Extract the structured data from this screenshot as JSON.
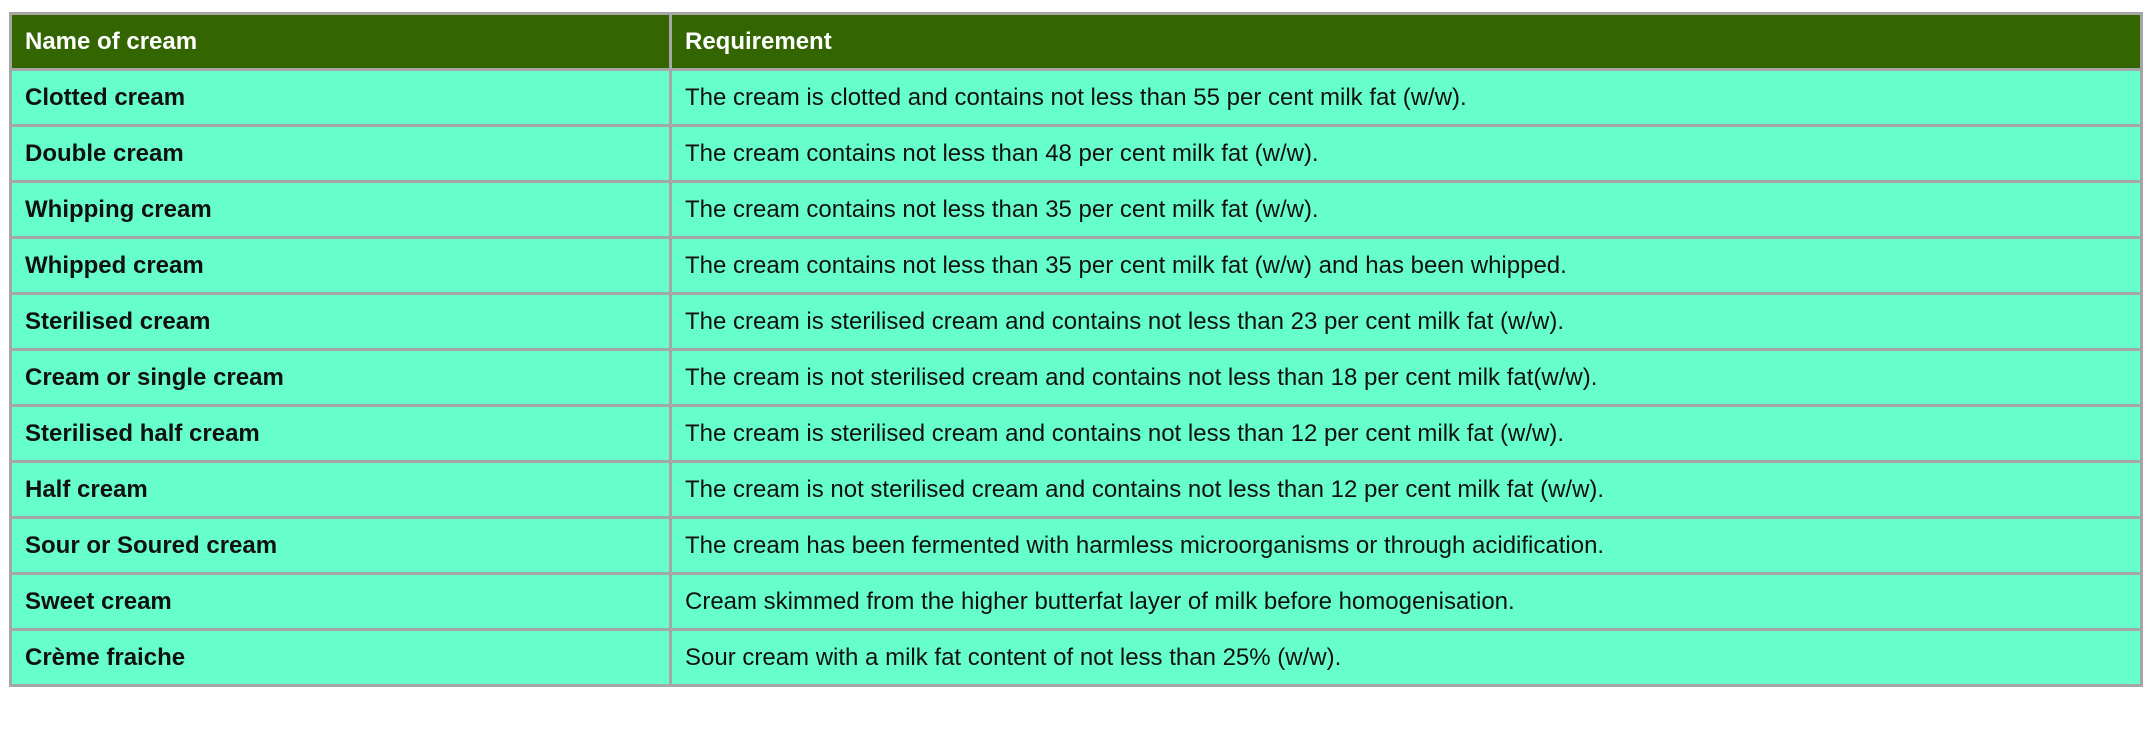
{
  "table": {
    "header": [
      "Name of cream",
      "Requirement"
    ],
    "rows": [
      [
        "Clotted cream",
        "The cream is clotted and contains not less than 55 per cent milk fat (w/w)."
      ],
      [
        "Double cream",
        "The cream contains not less than 48 per cent milk fat (w/w)."
      ],
      [
        "Whipping cream",
        "The cream contains not less than 35 per cent milk fat (w/w)."
      ],
      [
        "Whipped cream",
        "The cream contains not less than 35 per cent milk fat (w/w) and has been whipped."
      ],
      [
        "Sterilised cream",
        "The cream is sterilised cream and contains not less than 23 per cent milk fat (w/w)."
      ],
      [
        "Cream or single cream",
        "The cream is not sterilised cream and contains not less than 18 per cent milk fat(w/w)."
      ],
      [
        "Sterilised half cream",
        "The cream is sterilised cream and contains not less than 12 per cent milk fat (w/w)."
      ],
      [
        "Half cream",
        "The cream is not sterilised cream and contains not less than 12 per cent milk fat (w/w)."
      ],
      [
        "Sour or Soured cream",
        "The cream has been fermented with harmless microorganisms or through acidification."
      ],
      [
        "Sweet cream",
        "Cream skimmed from the higher butterfat layer of milk before homogenisation."
      ],
      [
        "Crème fraiche",
        "Sour cream with a milk fat content of not less than 25% (w/w)."
      ]
    ]
  }
}
